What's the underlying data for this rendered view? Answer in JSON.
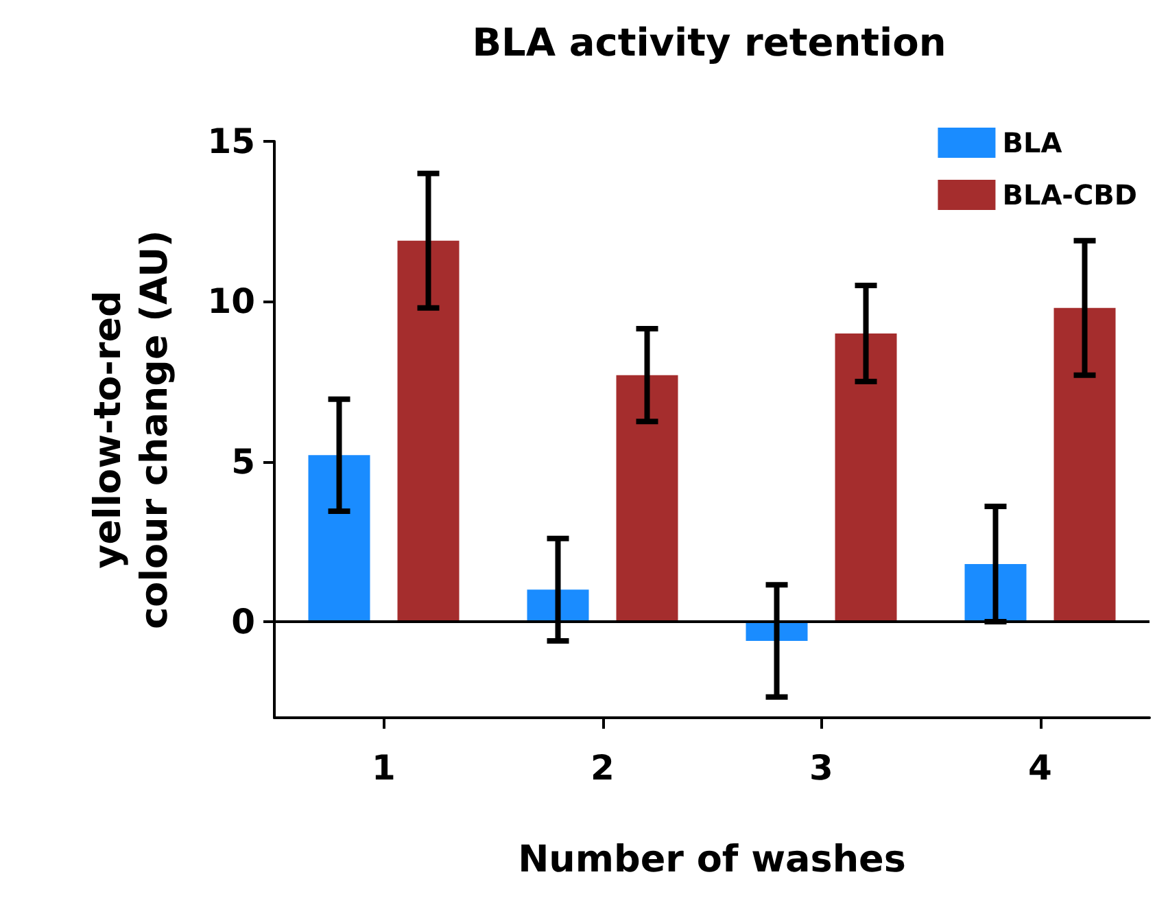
{
  "chart_data": {
    "type": "bar",
    "title": "BLA activity retention",
    "xlabel": "Number of washes",
    "ylabel": "yellow-to-red colour change (AU)",
    "categories": [
      "1",
      "2",
      "3",
      "4"
    ],
    "series": [
      {
        "name": "BLA",
        "color": "#1a8cff",
        "values": [
          5.2,
          1.0,
          -0.6,
          1.8
        ],
        "errors": [
          1.75,
          1.6,
          1.75,
          1.8
        ]
      },
      {
        "name": "BLA-CBD",
        "color": "#a52d2d",
        "values": [
          11.9,
          7.7,
          9.0,
          9.8
        ],
        "errors": [
          2.1,
          1.45,
          1.5,
          2.1
        ]
      }
    ],
    "ylim": [
      -3,
      15
    ],
    "yticks": [
      0,
      5,
      10,
      15
    ],
    "grid": false,
    "legend": "top right",
    "ref_lines": [
      {
        "axis": "y",
        "value": 0
      }
    ]
  }
}
